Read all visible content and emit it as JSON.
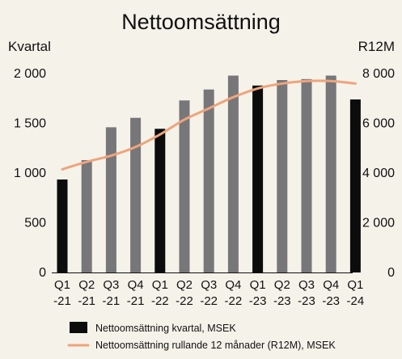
{
  "chart_data": {
    "type": "bar",
    "title": "Nettoomsättning",
    "left_axis_label": "Kvartal",
    "right_axis_label": "R12M",
    "left_ticks": [
      "0",
      "500",
      "1 000",
      "1 500",
      "2 000"
    ],
    "right_ticks": [
      "0",
      "2 000",
      "4 000",
      "6 000",
      "8 000"
    ],
    "ylim_left": [
      0,
      2000
    ],
    "ylim_right": [
      0,
      8000
    ],
    "categories": [
      [
        "Q1",
        "-21"
      ],
      [
        "Q2",
        "-21"
      ],
      [
        "Q3",
        "-21"
      ],
      [
        "Q4",
        "-21"
      ],
      [
        "Q1",
        "-22"
      ],
      [
        "Q2",
        "-22"
      ],
      [
        "Q3",
        "-22"
      ],
      [
        "Q4",
        "-22"
      ],
      [
        "Q1",
        "-23"
      ],
      [
        "Q2",
        "-23"
      ],
      [
        "Q3",
        "-23"
      ],
      [
        "Q4",
        "-23"
      ],
      [
        "Q1",
        "-24"
      ]
    ],
    "series": [
      {
        "name": "Nettoomsättning kvartal, MSEK",
        "axis": "left",
        "type": "bar",
        "values": [
          935,
          1130,
          1460,
          1555,
          1445,
          1730,
          1840,
          1980,
          1880,
          1935,
          1945,
          1980,
          1740
        ]
      },
      {
        "name": "Nettoomsättning rullande 12 månader (R12M), MSEK",
        "axis": "right",
        "type": "line",
        "values": [
          4150,
          4450,
          4700,
          5050,
          5550,
          6150,
          6600,
          7050,
          7400,
          7600,
          7700,
          7700,
          7600
        ]
      }
    ],
    "bar_highlight_indices": [
      0,
      4,
      8,
      12
    ],
    "colors": {
      "bar_highlight": "#0c0c0c",
      "bar": "#77777a",
      "line": "#eea47c",
      "background": "#f5f2ea"
    },
    "grid": false,
    "legend_position": "bottom-left"
  }
}
